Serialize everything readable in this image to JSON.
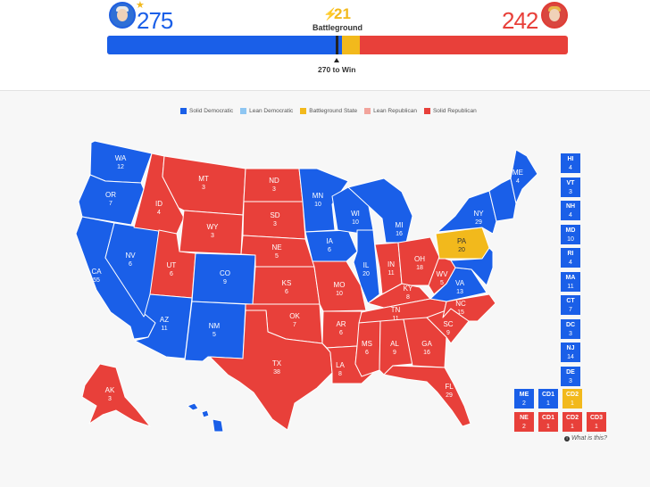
{
  "scoreboard": {
    "dem_electoral": "275",
    "rep_electoral": "242",
    "battleground_electoral": "21",
    "battleground_label": "Battleground",
    "win_threshold_label": "270 to Win",
    "winner_star": "★",
    "bolt_icon": "⚡",
    "bar_fractions": {
      "dem": 0.509,
      "battleground": 0.039,
      "rep": 0.45
    }
  },
  "legend": [
    {
      "label": "Solid Democratic",
      "color": "#1a5fe8"
    },
    {
      "label": "Lean Democratic",
      "color": "#8ec6f2"
    },
    {
      "label": "Battleground State",
      "color": "#f2b91c"
    },
    {
      "label": "Lean Republican",
      "color": "#f2a49c"
    },
    {
      "label": "Solid Republican",
      "color": "#e8403a"
    }
  ],
  "colors": {
    "dem": "#1a5fe8",
    "rep": "#e8403a",
    "battleground": "#f2b91c"
  },
  "states": [
    {
      "abbr": "WA",
      "votes": "12",
      "party": "dem"
    },
    {
      "abbr": "OR",
      "votes": "7",
      "party": "dem"
    },
    {
      "abbr": "CA",
      "votes": "55",
      "party": "dem"
    },
    {
      "abbr": "NV",
      "votes": "6",
      "party": "dem"
    },
    {
      "abbr": "ID",
      "votes": "4",
      "party": "rep"
    },
    {
      "abbr": "MT",
      "votes": "3",
      "party": "rep"
    },
    {
      "abbr": "WY",
      "votes": "3",
      "party": "rep"
    },
    {
      "abbr": "UT",
      "votes": "6",
      "party": "rep"
    },
    {
      "abbr": "CO",
      "votes": "9",
      "party": "dem"
    },
    {
      "abbr": "AZ",
      "votes": "11",
      "party": "dem"
    },
    {
      "abbr": "NM",
      "votes": "5",
      "party": "dem"
    },
    {
      "abbr": "ND",
      "votes": "3",
      "party": "rep"
    },
    {
      "abbr": "SD",
      "votes": "3",
      "party": "rep"
    },
    {
      "abbr": "NE",
      "votes": "5",
      "party": "rep"
    },
    {
      "abbr": "KS",
      "votes": "6",
      "party": "rep"
    },
    {
      "abbr": "OK",
      "votes": "7",
      "party": "rep"
    },
    {
      "abbr": "TX",
      "votes": "38",
      "party": "rep"
    },
    {
      "abbr": "MN",
      "votes": "10",
      "party": "dem"
    },
    {
      "abbr": "IA",
      "votes": "6",
      "party": "dem"
    },
    {
      "abbr": "MO",
      "votes": "10",
      "party": "rep"
    },
    {
      "abbr": "AR",
      "votes": "6",
      "party": "rep"
    },
    {
      "abbr": "LA",
      "votes": "8",
      "party": "rep"
    },
    {
      "abbr": "WI",
      "votes": "10",
      "party": "dem"
    },
    {
      "abbr": "IL",
      "votes": "20",
      "party": "dem"
    },
    {
      "abbr": "MI",
      "votes": "16",
      "party": "dem"
    },
    {
      "abbr": "IN",
      "votes": "11",
      "party": "rep"
    },
    {
      "abbr": "OH",
      "votes": "18",
      "party": "rep"
    },
    {
      "abbr": "KY",
      "votes": "8",
      "party": "rep"
    },
    {
      "abbr": "TN",
      "votes": "11",
      "party": "rep"
    },
    {
      "abbr": "MS",
      "votes": "6",
      "party": "rep"
    },
    {
      "abbr": "AL",
      "votes": "9",
      "party": "rep"
    },
    {
      "abbr": "GA",
      "votes": "16",
      "party": "rep"
    },
    {
      "abbr": "FL",
      "votes": "29",
      "party": "rep"
    },
    {
      "abbr": "SC",
      "votes": "9",
      "party": "rep"
    },
    {
      "abbr": "NC",
      "votes": "15",
      "party": "rep"
    },
    {
      "abbr": "VA",
      "votes": "13",
      "party": "dem"
    },
    {
      "abbr": "WV",
      "votes": "5",
      "party": "rep"
    },
    {
      "abbr": "PA",
      "votes": "20",
      "party": "battleground"
    },
    {
      "abbr": "NY",
      "votes": "29",
      "party": "dem"
    },
    {
      "abbr": "ME",
      "votes": "4",
      "party": "dem"
    },
    {
      "abbr": "AK",
      "votes": "3",
      "party": "rep"
    }
  ],
  "small_states": [
    {
      "abbr": "HI",
      "votes": "4",
      "party": "dem"
    },
    {
      "abbr": "VT",
      "votes": "3",
      "party": "dem"
    },
    {
      "abbr": "NH",
      "votes": "4",
      "party": "dem"
    },
    {
      "abbr": "MD",
      "votes": "10",
      "party": "dem"
    },
    {
      "abbr": "RI",
      "votes": "4",
      "party": "dem"
    },
    {
      "abbr": "MA",
      "votes": "11",
      "party": "dem"
    },
    {
      "abbr": "CT",
      "votes": "7",
      "party": "dem"
    },
    {
      "abbr": "DC",
      "votes": "3",
      "party": "dem"
    },
    {
      "abbr": "NJ",
      "votes": "14",
      "party": "dem"
    },
    {
      "abbr": "DE",
      "votes": "3",
      "party": "dem"
    }
  ],
  "district_rows": [
    [
      {
        "abbr": "ME",
        "votes": "2",
        "party": "dem"
      },
      {
        "abbr": "CD1",
        "votes": "1",
        "party": "dem"
      },
      {
        "abbr": "CD2",
        "votes": "1",
        "party": "battleground"
      }
    ],
    [
      {
        "abbr": "NE",
        "votes": "2",
        "party": "rep"
      },
      {
        "abbr": "CD1",
        "votes": "1",
        "party": "rep"
      },
      {
        "abbr": "CD2",
        "votes": "1",
        "party": "rep"
      },
      {
        "abbr": "CD3",
        "votes": "1",
        "party": "rep"
      }
    ]
  ],
  "footer": {
    "what_is_this": "What is this?",
    "info_icon": "i"
  }
}
